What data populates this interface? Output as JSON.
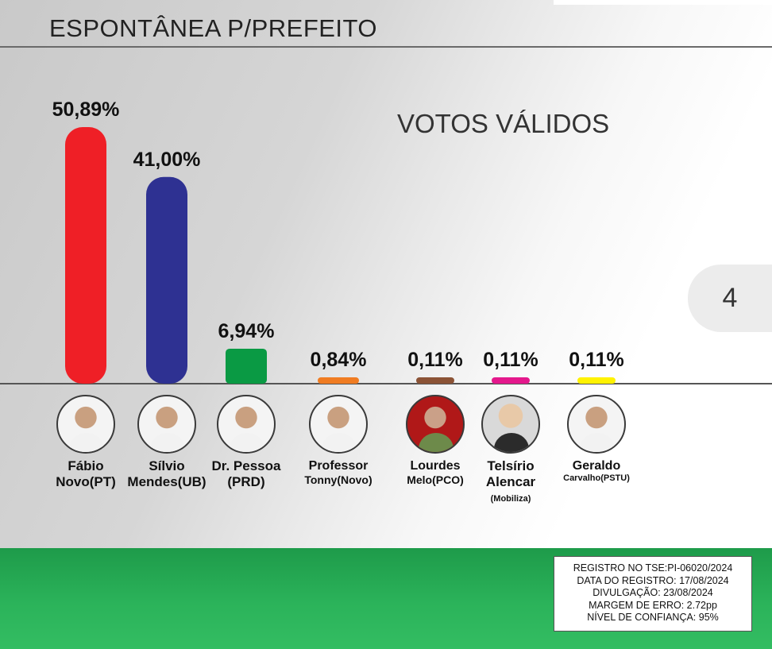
{
  "header": {
    "title": "ESPONTÂNEA P/PREFEITO"
  },
  "subtitle": "VOTOS VÁLIDOS",
  "page_number": "4",
  "chart_data": {
    "type": "bar",
    "title": "ESPONTÂNEA P/PREFEITO",
    "subtitle": "VOTOS VÁLIDOS",
    "categories": [
      "Fábio Novo(PT)",
      "Sílvio Mendes(UB)",
      "Dr. Pessoa (PRD)",
      "Professor Tonny(Novo)",
      "Lourdes Melo(PCO)",
      "Telsírio Alencar (Mobiliza)",
      "Geraldo Carvalho(PSTU)"
    ],
    "values": [
      50.89,
      41.0,
      6.94,
      0.84,
      0.11,
      0.11,
      0.11
    ],
    "value_labels": [
      "50,89%",
      "41,00%",
      "6,94%",
      "0,84%",
      "0,11%",
      "0,11%",
      "0,11%"
    ],
    "colors": [
      "#ef1f26",
      "#2e3192",
      "#0a9a44",
      "#f07c22",
      "#8b5336",
      "#e4188c",
      "#fff200"
    ],
    "unit": "%",
    "ylim": [
      0,
      52
    ],
    "grid": false,
    "legend": "none"
  },
  "candidates": [
    {
      "name": "Fábio",
      "party": "Novo(PT)",
      "photo": "candidate-photo"
    },
    {
      "name": "Sílvio",
      "party": "Mendes(UB)",
      "photo": "candidate-photo"
    },
    {
      "name": "Dr. Pessoa",
      "party": "(PRD)",
      "photo": "candidate-photo"
    },
    {
      "name": "Professor",
      "party": "Tonny(Novo)",
      "photo": "candidate-photo"
    },
    {
      "name": "Lourdes",
      "party": "Melo(PCO)",
      "photo": "candidate-photo"
    },
    {
      "name": "Telsírio\nAlencar",
      "party": "(Mobiliza)",
      "photo": "candidate-photo"
    },
    {
      "name": "Geraldo",
      "party": "Carvalho(PSTU)",
      "photo": "candidate-photo"
    }
  ],
  "registry": {
    "line1": "REGISTRO NO TSE:PI-06020/2024",
    "line2": "DATA DO REGISTRO: 17/08/2024",
    "line3": "DIVULGAÇÃO: 23/08/2024",
    "line4": "MARGEM DE ERRO: 2.72pp",
    "line5": "NÍVEL DE CONFIANÇA: 95%"
  },
  "colors": {
    "footer_green": "#2bb35a",
    "baseline": "#555555"
  }
}
